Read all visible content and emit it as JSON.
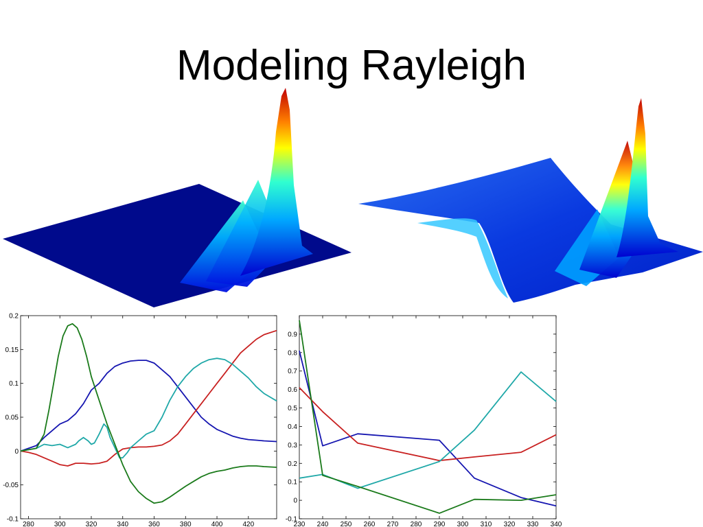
{
  "slide": {
    "title": "Modeling Rayleigh"
  },
  "chart_data": [
    {
      "type": "line",
      "xlim": [
        275,
        438
      ],
      "ylim": [
        -0.1,
        0.2
      ],
      "xticks": [
        280,
        300,
        320,
        340,
        360,
        380,
        400,
        420
      ],
      "yticks": [
        -0.1,
        -0.05,
        0,
        0.05,
        0.1,
        0.15,
        0.2
      ],
      "ytick_labels": [
        "-0.1",
        "-0.05",
        "0",
        "0.05",
        "0.1",
        "0.15",
        "0.2"
      ],
      "grid": false,
      "series": [
        {
          "color": "#1515b0",
          "points": [
            [
              275,
              0
            ],
            [
              280,
              0.004
            ],
            [
              285,
              0.008
            ],
            [
              290,
              0.02
            ],
            [
              295,
              0.03
            ],
            [
              300,
              0.04
            ],
            [
              305,
              0.045
            ],
            [
              310,
              0.055
            ],
            [
              315,
              0.07
            ],
            [
              320,
              0.09
            ],
            [
              325,
              0.1
            ],
            [
              330,
              0.115
            ],
            [
              335,
              0.125
            ],
            [
              340,
              0.13
            ],
            [
              345,
              0.133
            ],
            [
              350,
              0.134
            ],
            [
              355,
              0.134
            ],
            [
              360,
              0.13
            ],
            [
              365,
              0.12
            ],
            [
              370,
              0.11
            ],
            [
              375,
              0.095
            ],
            [
              380,
              0.08
            ],
            [
              385,
              0.065
            ],
            [
              390,
              0.05
            ],
            [
              395,
              0.04
            ],
            [
              400,
              0.032
            ],
            [
              405,
              0.027
            ],
            [
              410,
              0.022
            ],
            [
              415,
              0.019
            ],
            [
              420,
              0.017
            ],
            [
              425,
              0.016
            ],
            [
              430,
              0.015
            ],
            [
              438,
              0.014
            ]
          ]
        },
        {
          "color": "#c82020",
          "points": [
            [
              275,
              0
            ],
            [
              280,
              -0.002
            ],
            [
              285,
              -0.005
            ],
            [
              290,
              -0.01
            ],
            [
              295,
              -0.015
            ],
            [
              300,
              -0.02
            ],
            [
              305,
              -0.022
            ],
            [
              310,
              -0.018
            ],
            [
              315,
              -0.018
            ],
            [
              320,
              -0.019
            ],
            [
              325,
              -0.018
            ],
            [
              330,
              -0.015
            ],
            [
              335,
              -0.005
            ],
            [
              340,
              0.003
            ],
            [
              345,
              0.005
            ],
            [
              350,
              0.006
            ],
            [
              355,
              0.006
            ],
            [
              360,
              0.007
            ],
            [
              365,
              0.009
            ],
            [
              370,
              0.015
            ],
            [
              375,
              0.025
            ],
            [
              380,
              0.04
            ],
            [
              385,
              0.055
            ],
            [
              390,
              0.07
            ],
            [
              395,
              0.085
            ],
            [
              400,
              0.1
            ],
            [
              405,
              0.115
            ],
            [
              410,
              0.13
            ],
            [
              415,
              0.145
            ],
            [
              420,
              0.155
            ],
            [
              425,
              0.165
            ],
            [
              430,
              0.172
            ],
            [
              438,
              0.178
            ]
          ]
        },
        {
          "color": "#1fa8a8",
          "points": [
            [
              275,
              0
            ],
            [
              280,
              0.002
            ],
            [
              285,
              0.004
            ],
            [
              290,
              0.01
            ],
            [
              295,
              0.008
            ],
            [
              300,
              0.01
            ],
            [
              305,
              0.005
            ],
            [
              310,
              0.01
            ],
            [
              312,
              0.015
            ],
            [
              315,
              0.02
            ],
            [
              318,
              0.015
            ],
            [
              320,
              0.01
            ],
            [
              322,
              0.012
            ],
            [
              325,
              0.025
            ],
            [
              328,
              0.04
            ],
            [
              330,
              0.035
            ],
            [
              332,
              0.02
            ],
            [
              335,
              0.005
            ],
            [
              338,
              -0.01
            ],
            [
              340,
              -0.01
            ],
            [
              343,
              -0.002
            ],
            [
              345,
              0.005
            ],
            [
              350,
              0.015
            ],
            [
              355,
              0.025
            ],
            [
              360,
              0.03
            ],
            [
              365,
              0.05
            ],
            [
              370,
              0.075
            ],
            [
              375,
              0.095
            ],
            [
              380,
              0.11
            ],
            [
              385,
              0.122
            ],
            [
              390,
              0.13
            ],
            [
              395,
              0.135
            ],
            [
              400,
              0.137
            ],
            [
              405,
              0.135
            ],
            [
              410,
              0.128
            ],
            [
              415,
              0.118
            ],
            [
              420,
              0.108
            ],
            [
              425,
              0.095
            ],
            [
              430,
              0.085
            ],
            [
              438,
              0.074
            ]
          ]
        },
        {
          "color": "#1a7a1a",
          "points": [
            [
              275,
              0
            ],
            [
              280,
              0.002
            ],
            [
              285,
              0.004
            ],
            [
              290,
              0.025
            ],
            [
              293,
              0.06
            ],
            [
              296,
              0.1
            ],
            [
              299,
              0.14
            ],
            [
              302,
              0.17
            ],
            [
              305,
              0.185
            ],
            [
              308,
              0.188
            ],
            [
              311,
              0.182
            ],
            [
              314,
              0.165
            ],
            [
              317,
              0.14
            ],
            [
              320,
              0.11
            ],
            [
              325,
              0.075
            ],
            [
              330,
              0.04
            ],
            [
              335,
              0.01
            ],
            [
              340,
              -0.02
            ],
            [
              345,
              -0.045
            ],
            [
              350,
              -0.06
            ],
            [
              355,
              -0.07
            ],
            [
              360,
              -0.077
            ],
            [
              365,
              -0.075
            ],
            [
              370,
              -0.068
            ],
            [
              375,
              -0.06
            ],
            [
              380,
              -0.052
            ],
            [
              385,
              -0.045
            ],
            [
              390,
              -0.038
            ],
            [
              395,
              -0.033
            ],
            [
              400,
              -0.03
            ],
            [
              405,
              -0.028
            ],
            [
              410,
              -0.025
            ],
            [
              415,
              -0.023
            ],
            [
              420,
              -0.022
            ],
            [
              425,
              -0.022
            ],
            [
              430,
              -0.023
            ],
            [
              438,
              -0.024
            ]
          ]
        }
      ]
    },
    {
      "type": "line",
      "xlim": [
        230,
        340
      ],
      "ylim": [
        -0.1,
        1.0
      ],
      "xticks": [
        230,
        240,
        250,
        260,
        270,
        280,
        290,
        300,
        310,
        320,
        330,
        340
      ],
      "yticks": [
        -0.1,
        0,
        0.1,
        0.2,
        0.3,
        0.4,
        0.5,
        0.6,
        0.7,
        0.8,
        0.9
      ],
      "ytick_labels": [
        "-0.1",
        "0",
        "0.1",
        "0.2",
        "0.3",
        "0.4",
        "0.5",
        "0.6",
        "0.7",
        "0.8",
        "0.9"
      ],
      "grid": false,
      "series": [
        {
          "color": "#1515b0",
          "points": [
            [
              230,
              0.81
            ],
            [
              240,
              0.295
            ],
            [
              255,
              0.36
            ],
            [
              290,
              0.325
            ],
            [
              305,
              0.12
            ],
            [
              325,
              0.015
            ],
            [
              340,
              -0.03
            ]
          ]
        },
        {
          "color": "#c82020",
          "points": [
            [
              230,
              0.61
            ],
            [
              240,
              0.48
            ],
            [
              255,
              0.31
            ],
            [
              290,
              0.215
            ],
            [
              305,
              0.235
            ],
            [
              325,
              0.26
            ],
            [
              340,
              0.355
            ]
          ]
        },
        {
          "color": "#1fa8a8",
          "points": [
            [
              230,
              0.12
            ],
            [
              240,
              0.14
            ],
            [
              255,
              0.065
            ],
            [
              290,
              0.21
            ],
            [
              305,
              0.38
            ],
            [
              325,
              0.695
            ],
            [
              340,
              0.535
            ]
          ]
        },
        {
          "color": "#1a7a1a",
          "points": [
            [
              230,
              0.975
            ],
            [
              240,
              0.135
            ],
            [
              255,
              0.075
            ],
            [
              290,
              -0.07
            ],
            [
              305,
              0.005
            ],
            [
              325,
              0.0
            ],
            [
              340,
              0.03
            ]
          ]
        }
      ]
    }
  ]
}
